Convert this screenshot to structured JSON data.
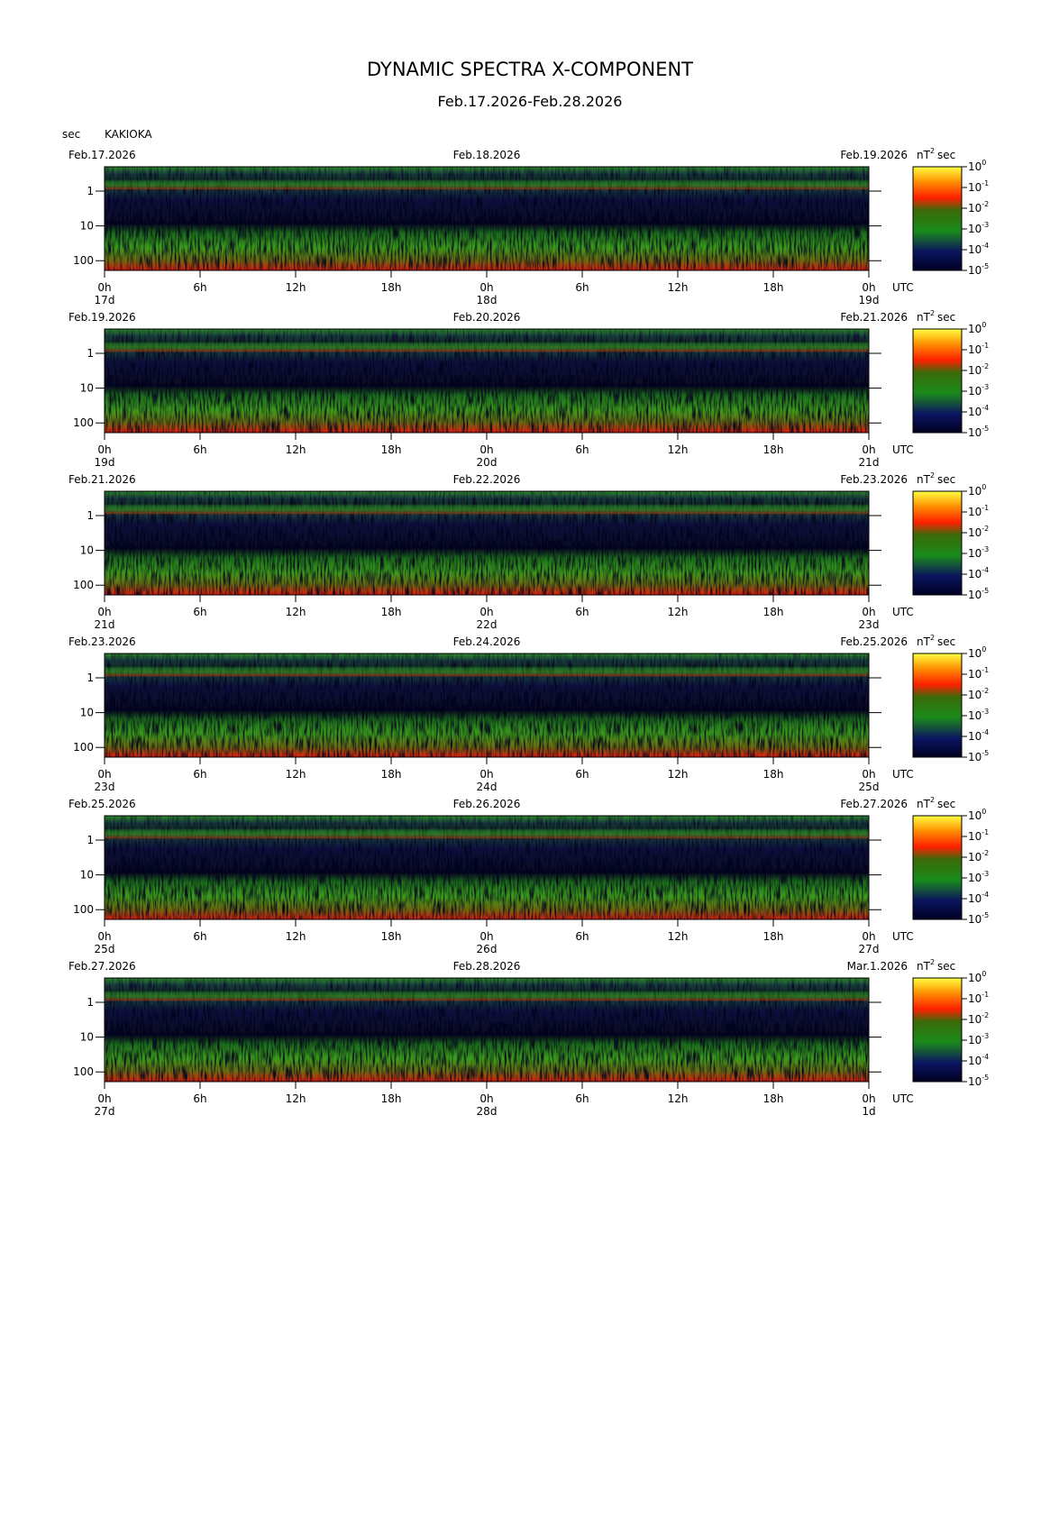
{
  "header": {
    "title": "DYNAMIC SPECTRA X-COMPONENT",
    "subtitle": "Feb.17.2026-Feb.28.2026",
    "y_unit": "sec",
    "station": "KAKIOKA"
  },
  "chart_data": [
    {
      "type": "spectrogram",
      "date_labels": [
        "Feb.17.2026",
        "Feb.18.2026",
        "Feb.19.2026"
      ],
      "day_labels": [
        {
          "value": 0,
          "label": "17d"
        },
        {
          "value": 24,
          "label": "18d"
        },
        {
          "value": 48,
          "label": "19d"
        }
      ],
      "x_unit": "UTC",
      "xlim": [
        0,
        48
      ],
      "xticks": [
        {
          "value": 0,
          "label": "0h"
        },
        {
          "value": 6,
          "label": "6h"
        },
        {
          "value": 12,
          "label": "12h"
        },
        {
          "value": 18,
          "label": "18h"
        },
        {
          "value": 24,
          "label": "0h"
        },
        {
          "value": 30,
          "label": "6h"
        },
        {
          "value": 36,
          "label": "12h"
        },
        {
          "value": 42,
          "label": "18h"
        },
        {
          "value": 48,
          "label": "0h"
        }
      ],
      "ylim": [
        0.2,
        190
      ],
      "yticks": [
        1,
        10,
        100
      ],
      "log_y": true,
      "y_inverted": true,
      "colorbar": {
        "unit_base": "nT",
        "unit_power": 2,
        "unit_tail": "sec",
        "lim": [
          -5,
          0
        ],
        "tick_base": "10",
        "ticks": [
          0,
          -1,
          -2,
          -3,
          -4,
          -5
        ]
      }
    },
    {
      "type": "spectrogram",
      "date_labels": [
        "Feb.19.2026",
        "Feb.20.2026",
        "Feb.21.2026"
      ],
      "day_labels": [
        {
          "value": 0,
          "label": "19d"
        },
        {
          "value": 24,
          "label": "20d"
        },
        {
          "value": 48,
          "label": "21d"
        }
      ],
      "x_unit": "UTC",
      "xlim": [
        0,
        48
      ],
      "xticks": [
        {
          "value": 0,
          "label": "0h"
        },
        {
          "value": 6,
          "label": "6h"
        },
        {
          "value": 12,
          "label": "12h"
        },
        {
          "value": 18,
          "label": "18h"
        },
        {
          "value": 24,
          "label": "0h"
        },
        {
          "value": 30,
          "label": "6h"
        },
        {
          "value": 36,
          "label": "12h"
        },
        {
          "value": 42,
          "label": "18h"
        },
        {
          "value": 48,
          "label": "0h"
        }
      ],
      "ylim": [
        0.2,
        190
      ],
      "yticks": [
        1,
        10,
        100
      ],
      "log_y": true,
      "y_inverted": true,
      "colorbar": {
        "unit_base": "nT",
        "unit_power": 2,
        "unit_tail": "sec",
        "lim": [
          -5,
          0
        ],
        "tick_base": "10",
        "ticks": [
          0,
          -1,
          -2,
          -3,
          -4,
          -5
        ]
      }
    },
    {
      "type": "spectrogram",
      "date_labels": [
        "Feb.21.2026",
        "Feb.22.2026",
        "Feb.23.2026"
      ],
      "day_labels": [
        {
          "value": 0,
          "label": "21d"
        },
        {
          "value": 24,
          "label": "22d"
        },
        {
          "value": 48,
          "label": "23d"
        }
      ],
      "x_unit": "UTC",
      "xlim": [
        0,
        48
      ],
      "xticks": [
        {
          "value": 0,
          "label": "0h"
        },
        {
          "value": 6,
          "label": "6h"
        },
        {
          "value": 12,
          "label": "12h"
        },
        {
          "value": 18,
          "label": "18h"
        },
        {
          "value": 24,
          "label": "0h"
        },
        {
          "value": 30,
          "label": "6h"
        },
        {
          "value": 36,
          "label": "12h"
        },
        {
          "value": 42,
          "label": "18h"
        },
        {
          "value": 48,
          "label": "0h"
        }
      ],
      "ylim": [
        0.2,
        190
      ],
      "yticks": [
        1,
        10,
        100
      ],
      "log_y": true,
      "y_inverted": true,
      "colorbar": {
        "unit_base": "nT",
        "unit_power": 2,
        "unit_tail": "sec",
        "lim": [
          -5,
          0
        ],
        "tick_base": "10",
        "ticks": [
          0,
          -1,
          -2,
          -3,
          -4,
          -5
        ]
      }
    },
    {
      "type": "spectrogram",
      "date_labels": [
        "Feb.23.2026",
        "Feb.24.2026",
        "Feb.25.2026"
      ],
      "day_labels": [
        {
          "value": 0,
          "label": "23d"
        },
        {
          "value": 24,
          "label": "24d"
        },
        {
          "value": 48,
          "label": "25d"
        }
      ],
      "x_unit": "UTC",
      "xlim": [
        0,
        48
      ],
      "xticks": [
        {
          "value": 0,
          "label": "0h"
        },
        {
          "value": 6,
          "label": "6h"
        },
        {
          "value": 12,
          "label": "12h"
        },
        {
          "value": 18,
          "label": "18h"
        },
        {
          "value": 24,
          "label": "0h"
        },
        {
          "value": 30,
          "label": "6h"
        },
        {
          "value": 36,
          "label": "12h"
        },
        {
          "value": 42,
          "label": "18h"
        },
        {
          "value": 48,
          "label": "0h"
        }
      ],
      "ylim": [
        0.2,
        190
      ],
      "yticks": [
        1,
        10,
        100
      ],
      "log_y": true,
      "y_inverted": true,
      "colorbar": {
        "unit_base": "nT",
        "unit_power": 2,
        "unit_tail": "sec",
        "lim": [
          -5,
          0
        ],
        "tick_base": "10",
        "ticks": [
          0,
          -1,
          -2,
          -3,
          -4,
          -5
        ]
      }
    },
    {
      "type": "spectrogram",
      "date_labels": [
        "Feb.25.2026",
        "Feb.26.2026",
        "Feb.27.2026"
      ],
      "day_labels": [
        {
          "value": 0,
          "label": "25d"
        },
        {
          "value": 24,
          "label": "26d"
        },
        {
          "value": 48,
          "label": "27d"
        }
      ],
      "x_unit": "UTC",
      "xlim": [
        0,
        48
      ],
      "xticks": [
        {
          "value": 0,
          "label": "0h"
        },
        {
          "value": 6,
          "label": "6h"
        },
        {
          "value": 12,
          "label": "12h"
        },
        {
          "value": 18,
          "label": "18h"
        },
        {
          "value": 24,
          "label": "0h"
        },
        {
          "value": 30,
          "label": "6h"
        },
        {
          "value": 36,
          "label": "12h"
        },
        {
          "value": 42,
          "label": "18h"
        },
        {
          "value": 48,
          "label": "0h"
        }
      ],
      "ylim": [
        0.2,
        190
      ],
      "yticks": [
        1,
        10,
        100
      ],
      "log_y": true,
      "y_inverted": true,
      "colorbar": {
        "unit_base": "nT",
        "unit_power": 2,
        "unit_tail": "sec",
        "lim": [
          -5,
          0
        ],
        "tick_base": "10",
        "ticks": [
          0,
          -1,
          -2,
          -3,
          -4,
          -5
        ]
      }
    },
    {
      "type": "spectrogram",
      "date_labels": [
        "Feb.27.2026",
        "Feb.28.2026",
        "Mar.1.2026"
      ],
      "day_labels": [
        {
          "value": 0,
          "label": "27d"
        },
        {
          "value": 24,
          "label": "28d"
        },
        {
          "value": 48,
          "label": "1d"
        }
      ],
      "x_unit": "UTC",
      "xlim": [
        0,
        48
      ],
      "xticks": [
        {
          "value": 0,
          "label": "0h"
        },
        {
          "value": 6,
          "label": "6h"
        },
        {
          "value": 12,
          "label": "12h"
        },
        {
          "value": 18,
          "label": "18h"
        },
        {
          "value": 24,
          "label": "0h"
        },
        {
          "value": 30,
          "label": "6h"
        },
        {
          "value": 36,
          "label": "12h"
        },
        {
          "value": 42,
          "label": "18h"
        },
        {
          "value": 48,
          "label": "0h"
        }
      ],
      "ylim": [
        0.2,
        190
      ],
      "yticks": [
        1,
        10,
        100
      ],
      "log_y": true,
      "y_inverted": true,
      "colorbar": {
        "unit_base": "nT",
        "unit_power": 2,
        "unit_tail": "sec",
        "lim": [
          -5,
          0
        ],
        "tick_base": "10",
        "ticks": [
          0,
          -1,
          -2,
          -3,
          -4,
          -5
        ]
      }
    }
  ]
}
